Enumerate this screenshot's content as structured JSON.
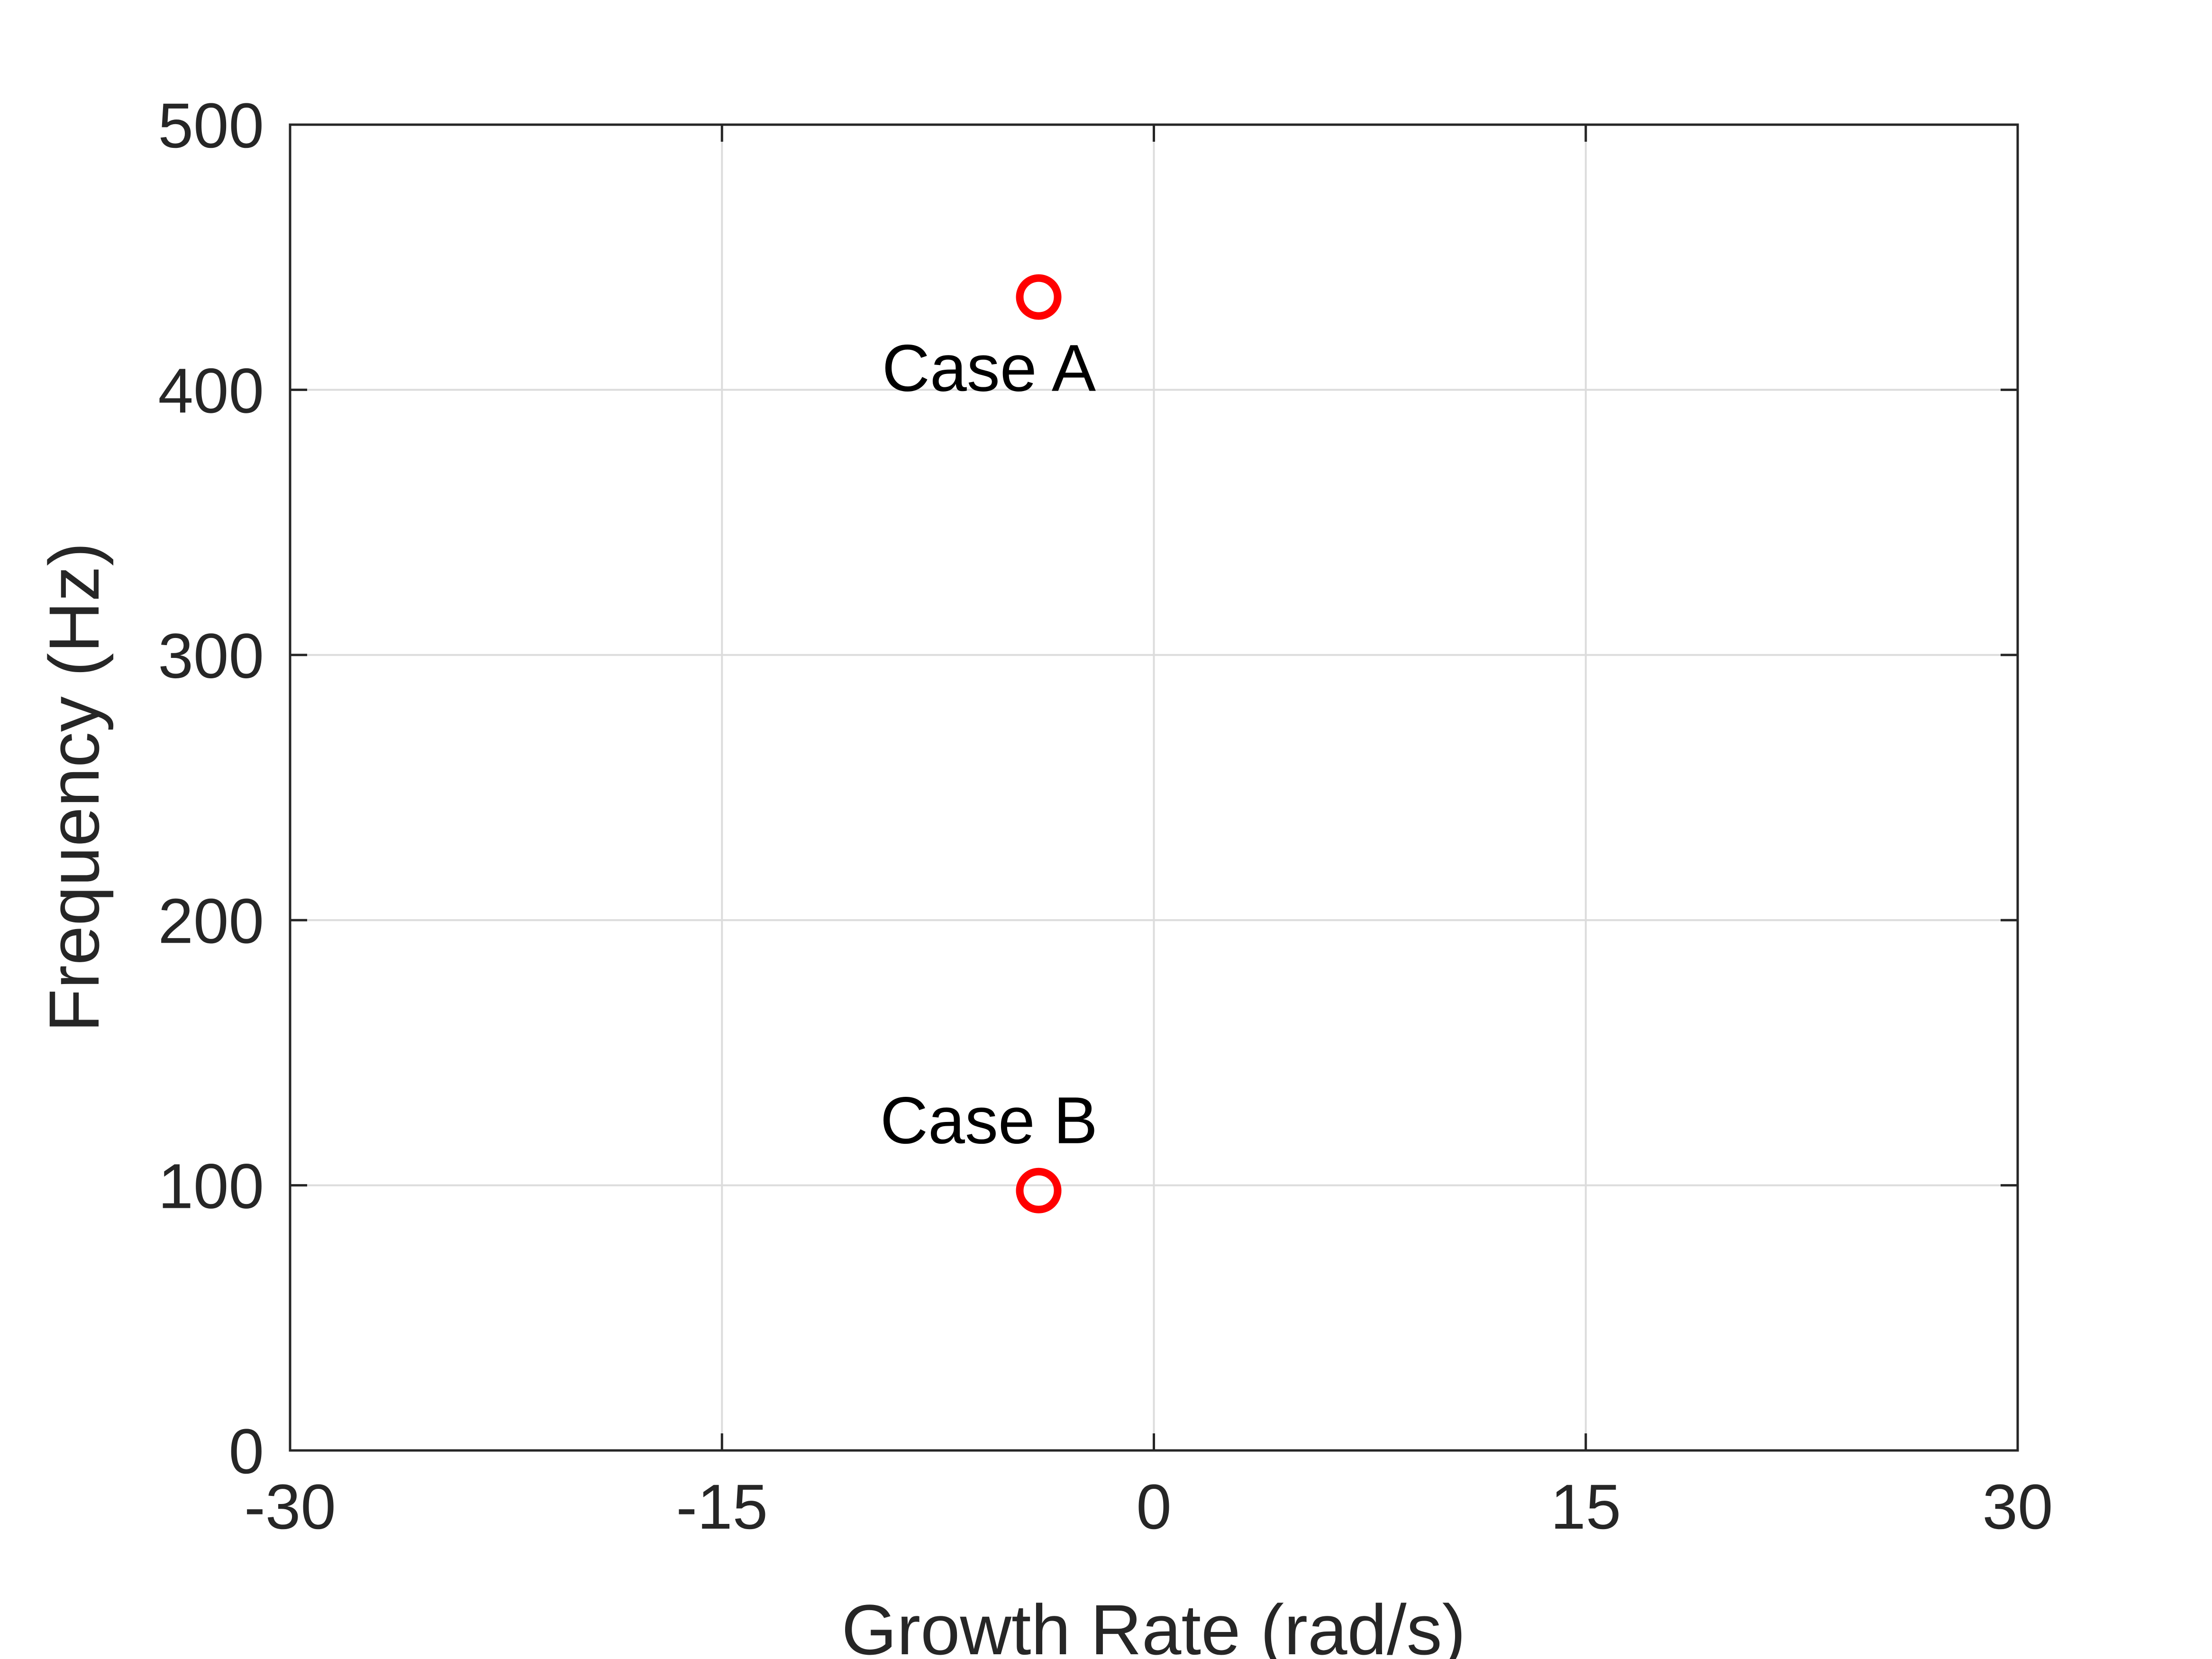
{
  "chart_data": {
    "type": "scatter",
    "title": "",
    "xlabel": "Growth Rate (rad/s)",
    "ylabel": "Frequency (Hz)",
    "xlim": [
      -30,
      30
    ],
    "ylim": [
      0,
      500
    ],
    "xticks": [
      -30,
      -15,
      0,
      15,
      30
    ],
    "yticks": [
      0,
      100,
      200,
      300,
      400,
      500
    ],
    "xtick_labels": [
      "-30",
      "-15",
      "0",
      "15",
      "30"
    ],
    "ytick_labels": [
      "0",
      "100",
      "200",
      "300",
      "400",
      "500"
    ],
    "grid": true,
    "legend": "none",
    "marker": "circle-open",
    "marker_color": "#ff0000",
    "points": [
      {
        "x": -4,
        "y": 435
      },
      {
        "x": -4,
        "y": 98
      }
    ],
    "annotations": [
      {
        "text": "Case A",
        "x": -4,
        "y": 435,
        "placement": "below"
      },
      {
        "text": "Case B",
        "x": -4,
        "y": 98,
        "placement": "above"
      }
    ]
  }
}
